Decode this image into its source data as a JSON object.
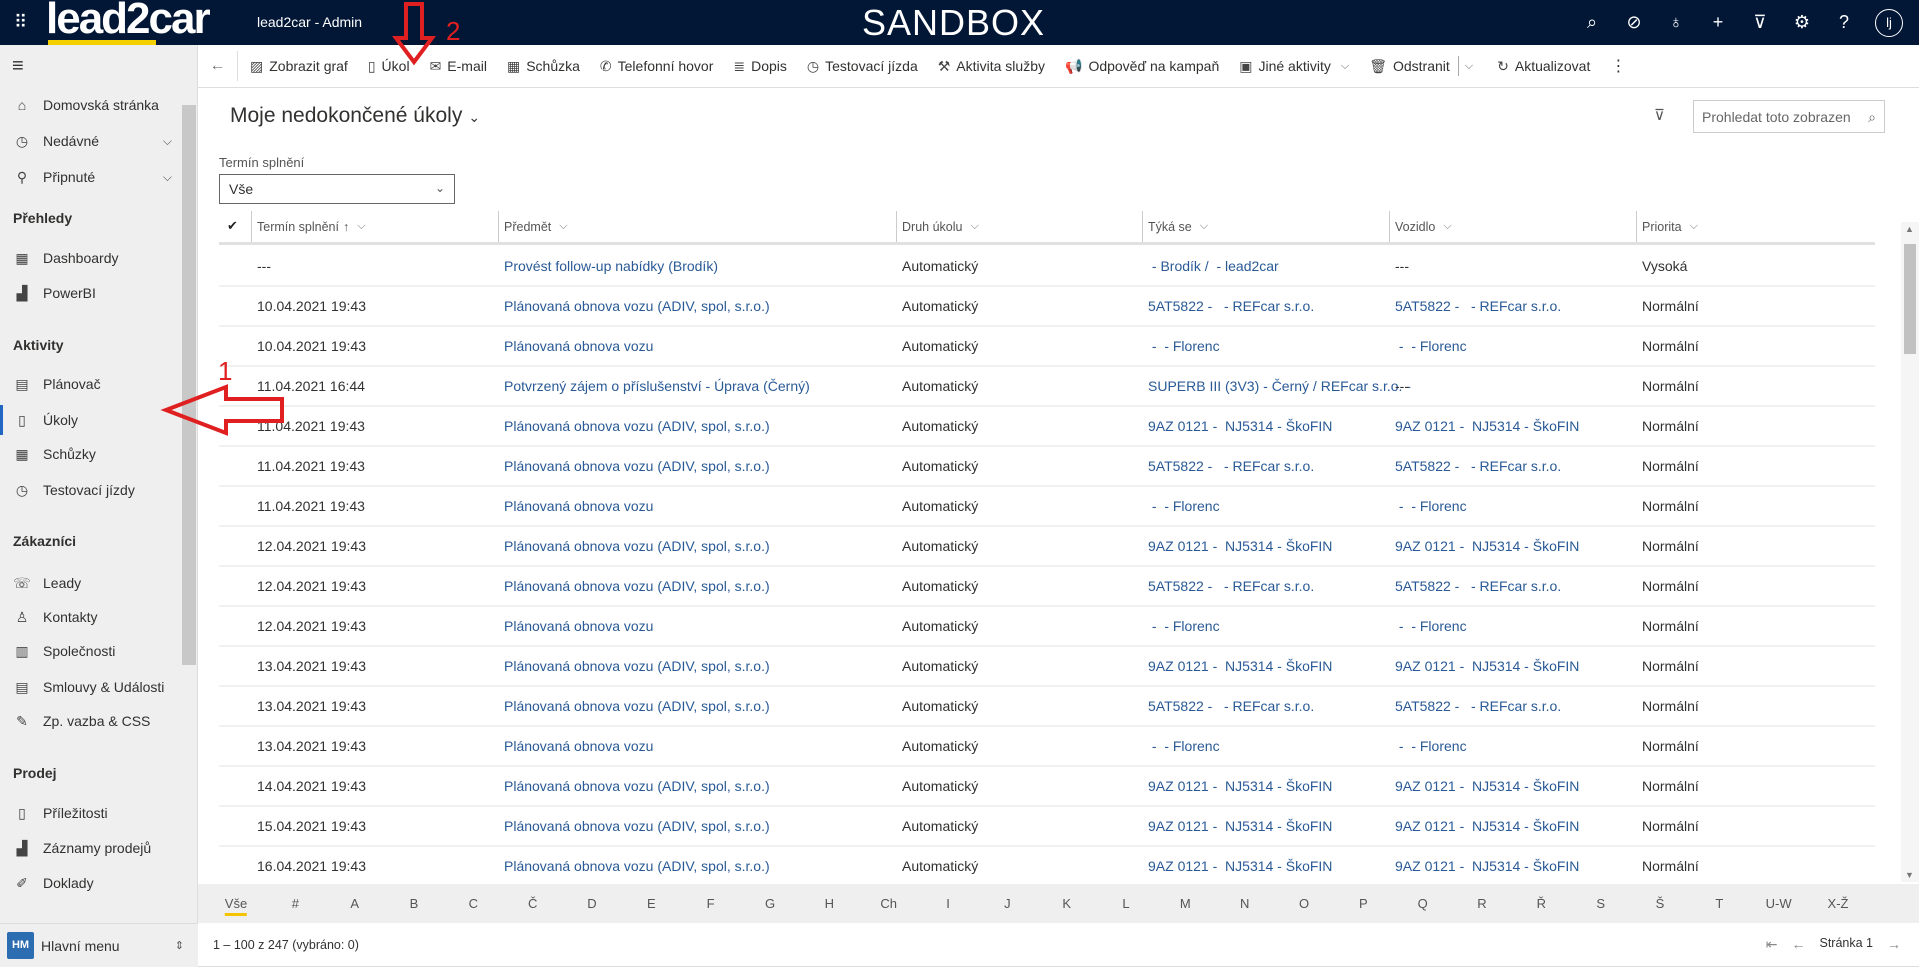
{
  "header": {
    "logo": "lead2car",
    "app_name": "lead2car - Admin",
    "environment": "SANDBOX",
    "avatar_initials": "lj",
    "icons": [
      "search-icon",
      "task-check-icon",
      "lightbulb-icon",
      "plus-icon",
      "filter-icon",
      "gear-icon",
      "help-icon"
    ]
  },
  "sidebar": {
    "home": "Domovská stránka",
    "recent": "Nedávné",
    "pinned": "Připnuté",
    "sections": [
      {
        "title": "Přehledy",
        "items": [
          "Dashboardy",
          "PowerBI"
        ]
      },
      {
        "title": "Aktivity",
        "items": [
          "Plánovač",
          "Úkoly",
          "Schůzky",
          "Testovací jízdy"
        ]
      },
      {
        "title": "Zákazníci",
        "items": [
          "Leady",
          "Kontakty",
          "Společnosti",
          "Smlouvy & Události",
          "Zp. vazba & CSS"
        ]
      },
      {
        "title": "Prodej",
        "items": [
          "Příležitosti",
          "Záznamy prodejů",
          "Doklady"
        ]
      }
    ],
    "active": "Úkoly",
    "area_badge": "HM",
    "area_label": "Hlavní menu"
  },
  "toolbar": {
    "items": [
      "Zobrazit graf",
      "Úkol",
      "E-mail",
      "Schůzka",
      "Telefonní hovor",
      "Dopis",
      "Testovací jízda",
      "Aktivita služby",
      "Odpověď na kampaň",
      "Jiné aktivity",
      "Odstranit",
      "Aktualizovat"
    ]
  },
  "view": {
    "title": "Moje nedokončené úkoly",
    "search_placeholder": "Prohledat toto zobrazen",
    "filter_label": "Termín splnění",
    "filter_value": "Vše"
  },
  "table": {
    "columns": [
      "Termín splnění",
      "Předmět",
      "Druh úkolu",
      "Týká se",
      "Vozidlo",
      "Priorita"
    ],
    "sort": "Termín splnění ascending",
    "rows": [
      [
        "---",
        "Provést follow-up nabídky (Brodík)",
        "Automatický",
        " - Brodík /  - lead2car",
        "---",
        "Vysoká"
      ],
      [
        "10.04.2021 19:43",
        "Plánovaná obnova vozu (ADIV, spol, s.r.o.)",
        "Automatický",
        "5AT5822 -   - REFcar s.r.o.",
        "5AT5822 -   - REFcar s.r.o.",
        "Normální"
      ],
      [
        "10.04.2021 19:43",
        "Plánovaná obnova vozu",
        "Automatický",
        " -  - Florenc",
        " -  - Florenc",
        "Normální"
      ],
      [
        "11.04.2021 16:44",
        "Potvrzený zájem o příslušenství - Úprava (Černý)",
        "Automatický",
        "SUPERB III (3V3) - Černý / REFcar s.r.o. -",
        "---",
        "Normální"
      ],
      [
        "11.04.2021 19:43",
        "Plánovaná obnova vozu (ADIV, spol, s.r.o.)",
        "Automatický",
        "9AZ 0121 -  NJ5314 - ŠkoFIN",
        "9AZ 0121 -  NJ5314 - ŠkoFIN",
        "Normální"
      ],
      [
        "11.04.2021 19:43",
        "Plánovaná obnova vozu (ADIV, spol, s.r.o.)",
        "Automatický",
        "5AT5822 -   - REFcar s.r.o.",
        "5AT5822 -   - REFcar s.r.o.",
        "Normální"
      ],
      [
        "11.04.2021 19:43",
        "Plánovaná obnova vozu",
        "Automatický",
        " -  - Florenc",
        " -  - Florenc",
        "Normální"
      ],
      [
        "12.04.2021 19:43",
        "Plánovaná obnova vozu (ADIV, spol, s.r.o.)",
        "Automatický",
        "9AZ 0121 -  NJ5314 - ŠkoFIN",
        "9AZ 0121 -  NJ5314 - ŠkoFIN",
        "Normální"
      ],
      [
        "12.04.2021 19:43",
        "Plánovaná obnova vozu (ADIV, spol, s.r.o.)",
        "Automatický",
        "5AT5822 -   - REFcar s.r.o.",
        "5AT5822 -   - REFcar s.r.o.",
        "Normální"
      ],
      [
        "12.04.2021 19:43",
        "Plánovaná obnova vozu",
        "Automatický",
        " -  - Florenc",
        " -  - Florenc",
        "Normální"
      ],
      [
        "13.04.2021 19:43",
        "Plánovaná obnova vozu (ADIV, spol, s.r.o.)",
        "Automatický",
        "9AZ 0121 -  NJ5314 - ŠkoFIN",
        "9AZ 0121 -  NJ5314 - ŠkoFIN",
        "Normální"
      ],
      [
        "13.04.2021 19:43",
        "Plánovaná obnova vozu (ADIV, spol, s.r.o.)",
        "Automatický",
        "5AT5822 -   - REFcar s.r.o.",
        "5AT5822 -   - REFcar s.r.o.",
        "Normální"
      ],
      [
        "13.04.2021 19:43",
        "Plánovaná obnova vozu",
        "Automatický",
        " -  - Florenc",
        " -  - Florenc",
        "Normální"
      ],
      [
        "14.04.2021 19:43",
        "Plánovaná obnova vozu (ADIV, spol, s.r.o.)",
        "Automatický",
        "9AZ 0121 -  NJ5314 - ŠkoFIN",
        "9AZ 0121 -  NJ5314 - ŠkoFIN",
        "Normální"
      ],
      [
        "15.04.2021 19:43",
        "Plánovaná obnova vozu (ADIV, spol, s.r.o.)",
        "Automatický",
        "9AZ 0121 -  NJ5314 - ŠkoFIN",
        "9AZ 0121 -  NJ5314 - ŠkoFIN",
        "Normální"
      ],
      [
        "16.04.2021 19:43",
        "Plánovaná obnova vozu (ADIV, spol, s.r.o.)",
        "Automatický",
        "9AZ 0121 -  NJ5314 - ŠkoFIN",
        "9AZ 0121 -  NJ5314 - ŠkoFIN",
        "Normální"
      ]
    ]
  },
  "alphabet": {
    "selected": "Vše",
    "letters": [
      "Vše",
      "#",
      "A",
      "B",
      "C",
      "Č",
      "D",
      "E",
      "F",
      "G",
      "H",
      "Ch",
      "I",
      "J",
      "K",
      "L",
      "M",
      "N",
      "O",
      "P",
      "Q",
      "R",
      "Ř",
      "S",
      "Š",
      "T",
      "U-W",
      "X-Ž"
    ]
  },
  "footer": {
    "count": "1 – 100 z 247 (vybráno: 0)",
    "page": "Stránka 1"
  },
  "annotations": {
    "label_1": "1",
    "label_2": "2",
    "color": "#e02020"
  },
  "colors": {
    "topbar": "#021636",
    "accent": "#f5d000",
    "link": "#2a5a96"
  }
}
